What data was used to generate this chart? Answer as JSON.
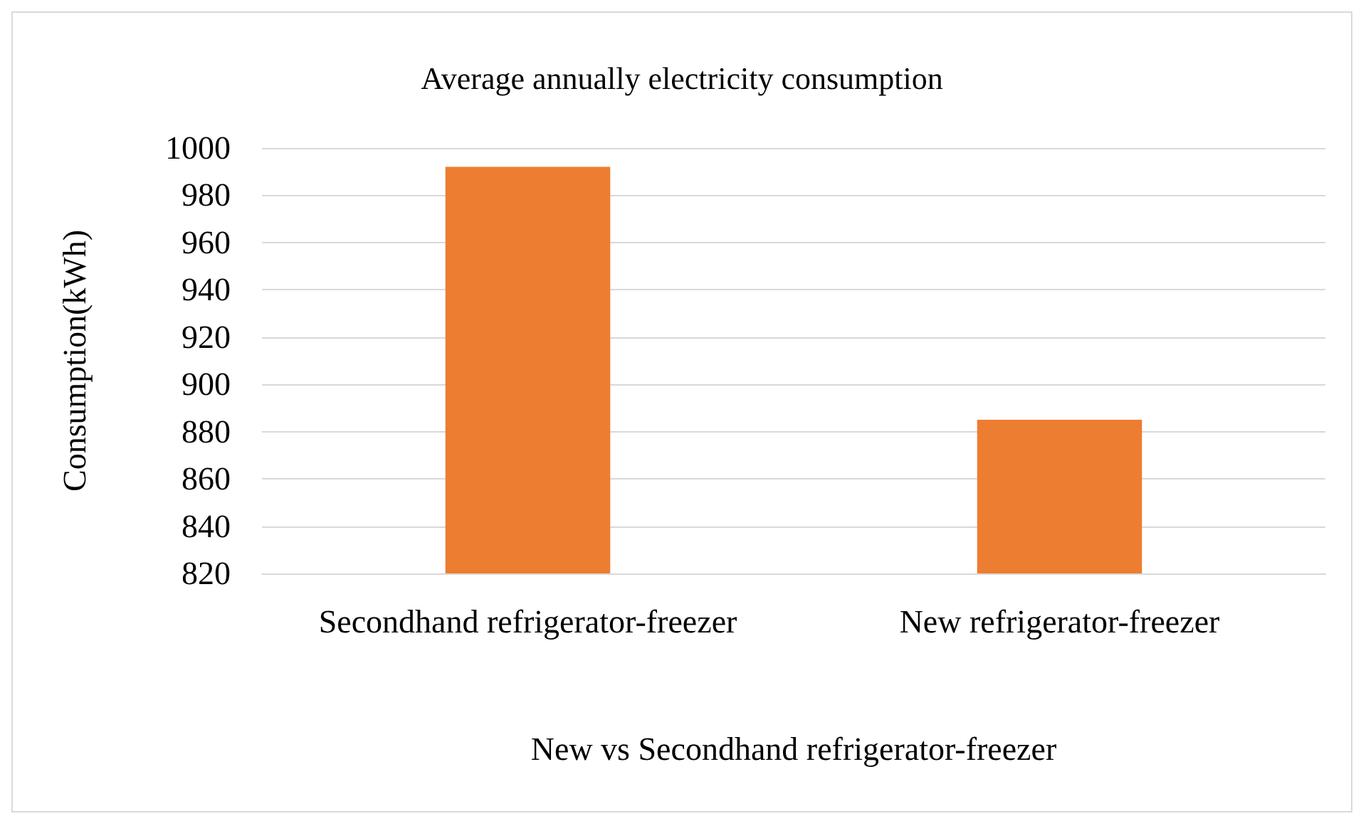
{
  "chart_data": {
    "type": "bar",
    "title": "Average annually electricity consumption",
    "xlabel": "New vs Secondhand refrigerator-freezer",
    "ylabel": "Consumption(kWh)",
    "categories": [
      "Secondhand refrigerator-freezer",
      "New refrigerator-freezer"
    ],
    "values": [
      992,
      885
    ],
    "color": "#ed7d31",
    "ylim": [
      820,
      1000
    ],
    "yticks": [
      820,
      840,
      860,
      880,
      900,
      920,
      940,
      960,
      980,
      1000
    ],
    "grid": "y"
  }
}
